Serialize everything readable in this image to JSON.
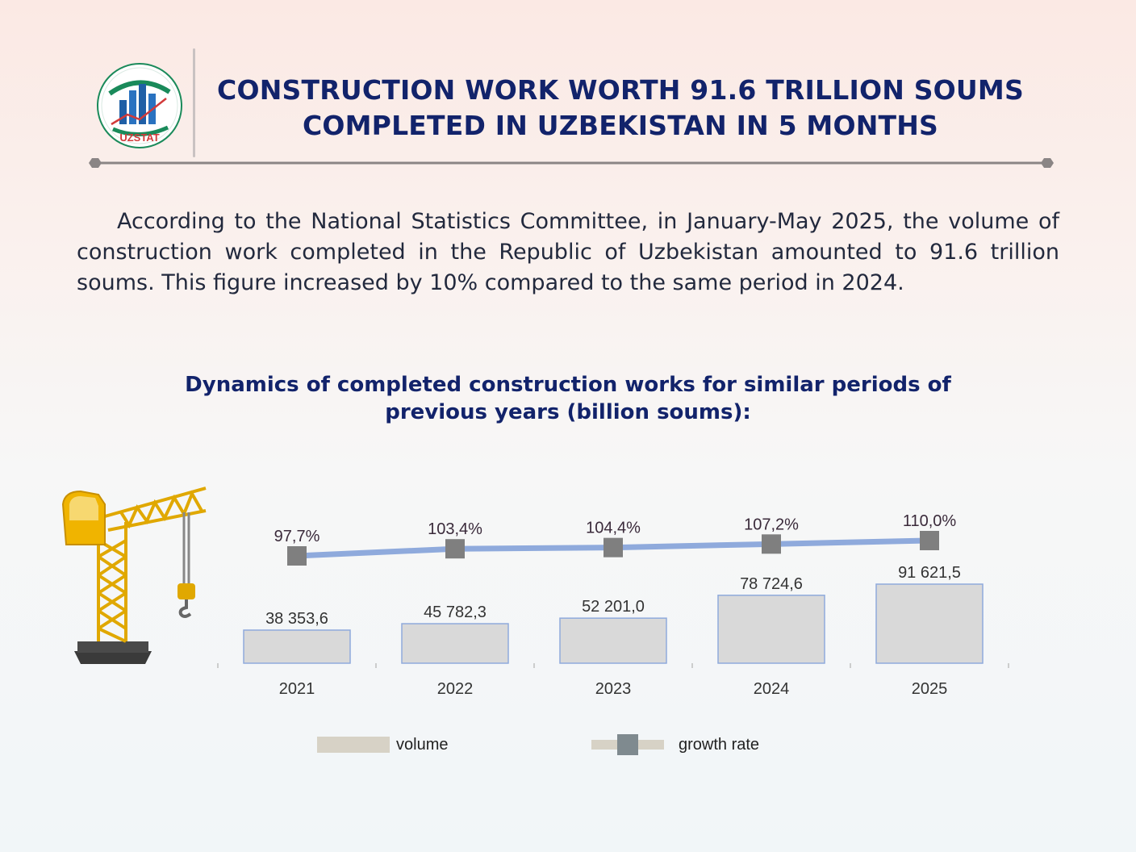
{
  "header": {
    "logo_text": "UZSTAT",
    "title_line1": "CONSTRUCTION WORK WORTH 91.6 TRILLION SOUMS",
    "title_line2": "COMPLETED IN UZBEKISTAN IN 5 MONTHS"
  },
  "intro": {
    "text": "According to the National Statistics Committee, in January-May 2025, the volume of construction work completed in the Republic of Uzbekistan amounted to 91.6 trillion soums. This figure increased by 10% compared to the same period in 2024."
  },
  "chart_data": {
    "type": "bar",
    "title": "Dynamics of completed construction works for similar periods of previous years (billion soums):",
    "categories": [
      "2021",
      "2022",
      "2023",
      "2024",
      "2025"
    ],
    "series": [
      {
        "name": "volume",
        "type": "bar",
        "values": [
          38353.6,
          45782.3,
          52201.0,
          78724.6,
          91621.5
        ],
        "labels": [
          "38 353,6",
          "45 782,3",
          "52 201,0",
          "78 724,6",
          "91 621,5"
        ],
        "color": "#d9d9d9",
        "border": "#8faadc"
      },
      {
        "name": "growth rate",
        "type": "line",
        "values": [
          97.7,
          103.4,
          104.4,
          107.2,
          110.0
        ],
        "labels": [
          "97,7%",
          "103,4%",
          "104,4%",
          "107,2%",
          "110,0%"
        ],
        "line_color": "#8faadc",
        "marker_color": "#7f7f7f"
      }
    ],
    "legend": {
      "placement": "bottom"
    },
    "grid": false
  },
  "colors": {
    "title": "#12236b",
    "accent_blue": "#8faadc",
    "marker_gray": "#7f7f7f"
  }
}
